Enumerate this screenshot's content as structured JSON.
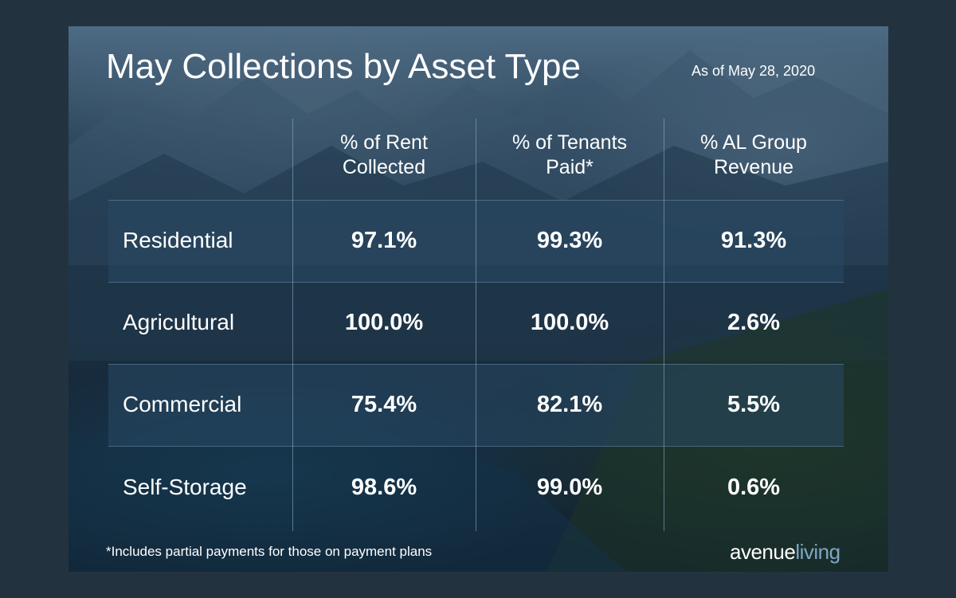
{
  "chart_data": {
    "type": "table",
    "title": "May Collections by Asset Type",
    "subtitle": "As of May 28, 2020",
    "columns": [
      "% of Rent\nCollected",
      "% of Tenants\nPaid*",
      "% AL Group\nRevenue"
    ],
    "rows": [
      {
        "label": "Residential",
        "values": [
          "97.1%",
          "99.3%",
          "91.3%"
        ]
      },
      {
        "label": "Agricultural",
        "values": [
          "100.0%",
          "100.0%",
          "2.6%"
        ]
      },
      {
        "label": "Commercial",
        "values": [
          "75.4%",
          "82.1%",
          "5.5%"
        ]
      },
      {
        "label": "Self-Storage",
        "values": [
          "98.6%",
          "99.0%",
          "0.6%"
        ]
      }
    ],
    "footnote": "*Includes partial payments for those on payment plans"
  },
  "logo": {
    "part1": "avenue",
    "part2": "living"
  },
  "colors": {
    "background": "#22333f",
    "text": "#ffffff",
    "logo_accent": "#7fa6c4"
  }
}
